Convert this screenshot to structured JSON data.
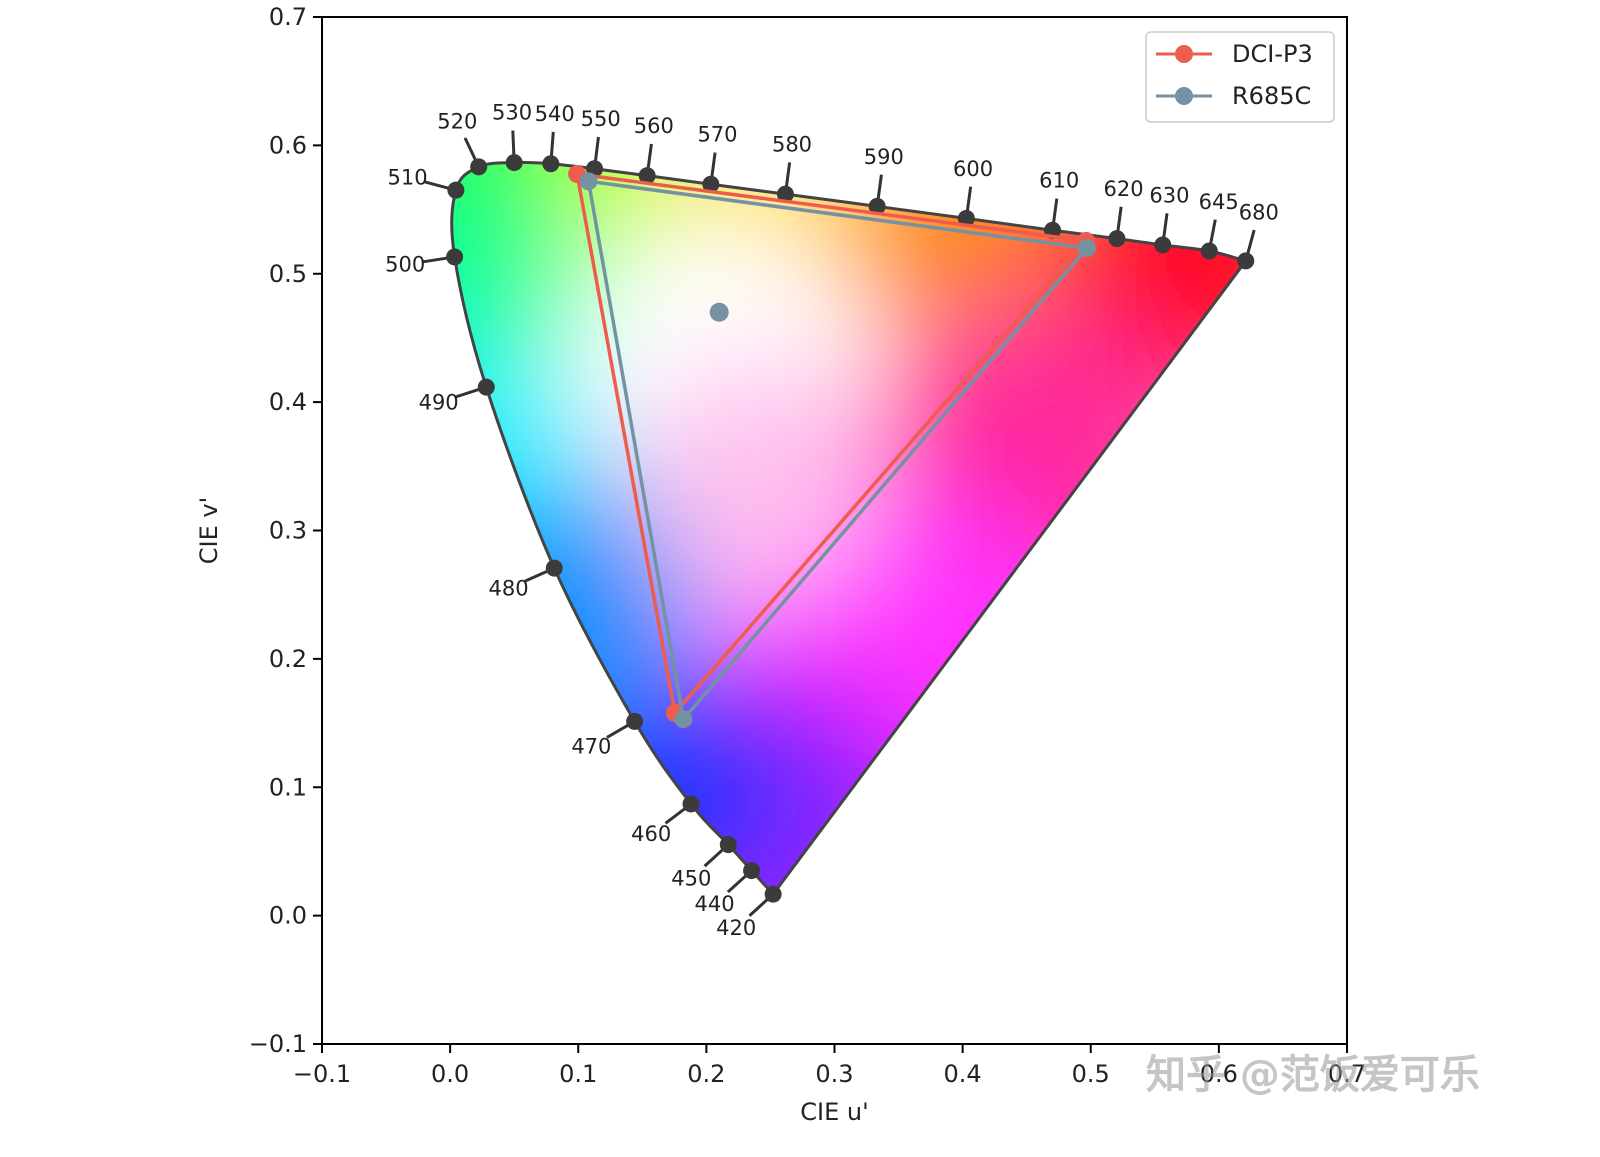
{
  "watermark": "知乎 @范饭爱可乐",
  "colors": {
    "dci_p3": "#ee5d4c",
    "r685c": "#7592a3",
    "locus_point": "#3b3b3b",
    "axis": "#000000"
  },
  "chart_data": {
    "type": "scatter",
    "title": "",
    "xlabel": "CIE u'",
    "ylabel": "CIE v'",
    "xlim": [
      -0.1,
      0.7
    ],
    "ylim": [
      -0.1,
      0.7
    ],
    "x_ticks": [
      {
        "value": -0.1,
        "label": "−0.1"
      },
      {
        "value": 0.0,
        "label": "0.0"
      },
      {
        "value": 0.1,
        "label": "0.1"
      },
      {
        "value": 0.2,
        "label": "0.2"
      },
      {
        "value": 0.3,
        "label": "0.3"
      },
      {
        "value": 0.4,
        "label": "0.4"
      },
      {
        "value": 0.5,
        "label": "0.5"
      },
      {
        "value": 0.6,
        "label": "0.6"
      },
      {
        "value": 0.7,
        "label": "0.7"
      }
    ],
    "y_ticks": [
      {
        "value": -0.1,
        "label": "−0.1"
      },
      {
        "value": 0.0,
        "label": "0.0"
      },
      {
        "value": 0.1,
        "label": "0.1"
      },
      {
        "value": 0.2,
        "label": "0.2"
      },
      {
        "value": 0.3,
        "label": "0.3"
      },
      {
        "value": 0.4,
        "label": "0.4"
      },
      {
        "value": 0.5,
        "label": "0.5"
      },
      {
        "value": 0.6,
        "label": "0.6"
      },
      {
        "value": 0.7,
        "label": "0.7"
      }
    ],
    "spectral_locus": [
      {
        "nm": "420",
        "u": 0.2521,
        "v": 0.0167
      },
      {
        "nm": "440",
        "u": 0.2353,
        "v": 0.0351
      },
      {
        "nm": "450",
        "u": 0.2171,
        "v": 0.0553
      },
      {
        "nm": "460",
        "u": 0.188,
        "v": 0.087
      },
      {
        "nm": "470",
        "u": 0.144,
        "v": 0.1513
      },
      {
        "nm": "480",
        "u": 0.0813,
        "v": 0.2707
      },
      {
        "nm": "490",
        "u": 0.0282,
        "v": 0.4117
      },
      {
        "nm": "500",
        "u": 0.0035,
        "v": 0.5131
      },
      {
        "nm": "510",
        "u": 0.0045,
        "v": 0.5651
      },
      {
        "nm": "520",
        "u": 0.0223,
        "v": 0.5833
      },
      {
        "nm": "530",
        "u": 0.05,
        "v": 0.5866
      },
      {
        "nm": "540",
        "u": 0.0786,
        "v": 0.5857
      },
      {
        "nm": "550",
        "u": 0.1127,
        "v": 0.5818
      },
      {
        "nm": "560",
        "u": 0.1538,
        "v": 0.5764
      },
      {
        "nm": "570",
        "u": 0.2035,
        "v": 0.5697
      },
      {
        "nm": "580",
        "u": 0.2617,
        "v": 0.562
      },
      {
        "nm": "590",
        "u": 0.3333,
        "v": 0.5525
      },
      {
        "nm": "600",
        "u": 0.4029,
        "v": 0.5431
      },
      {
        "nm": "610",
        "u": 0.4702,
        "v": 0.5339
      },
      {
        "nm": "620",
        "u": 0.5204,
        "v": 0.5274
      },
      {
        "nm": "630",
        "u": 0.5562,
        "v": 0.5224
      },
      {
        "nm": "645",
        "u": 0.5925,
        "v": 0.5177
      },
      {
        "nm": "680",
        "u": 0.621,
        "v": 0.51
      }
    ],
    "series": [
      {
        "name": "DCI-P3",
        "color": "#ee5d4c",
        "points": [
          {
            "u": 0.4964,
            "v": 0.5256
          },
          {
            "u": 0.0991,
            "v": 0.5777
          },
          {
            "u": 0.1754,
            "v": 0.1579
          },
          {
            "u": 0.4964,
            "v": 0.5256
          }
        ]
      },
      {
        "name": "R685C",
        "color": "#7592a3",
        "points": [
          {
            "u": 0.497,
            "v": 0.52
          },
          {
            "u": 0.108,
            "v": 0.572
          },
          {
            "u": 0.182,
            "v": 0.153
          },
          {
            "u": 0.497,
            "v": 0.52
          }
        ]
      }
    ],
    "white_point": {
      "u": 0.21,
      "v": 0.47,
      "series": "R685C"
    },
    "legend": {
      "position": "top-right",
      "entries": [
        "DCI-P3",
        "R685C"
      ]
    }
  }
}
